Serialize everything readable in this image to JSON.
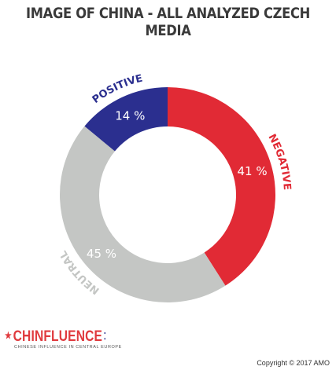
{
  "title": "IMAGE OF CHINA - ALL ANALYZED CZECH MEDIA",
  "chart_data": {
    "type": "pie",
    "variant": "donut",
    "title": "IMAGE OF CHINA - ALL ANALYZED CZECH MEDIA",
    "slices": [
      {
        "label": "NEGATIVE",
        "value": 41,
        "value_label": "41 %",
        "color": "#e12a35",
        "label_color": "#e12a35"
      },
      {
        "label": "NEUTRAL",
        "value": 45,
        "value_label": "45 %",
        "color": "#c4c6c4",
        "label_color": "#c4c6c4"
      },
      {
        "label": "POSITIVE",
        "value": 14,
        "value_label": "14 %",
        "color": "#2b2f8f",
        "label_color": "#2b2f8f"
      }
    ]
  },
  "logo": {
    "name": "CHINFLUENCE",
    "tagline": "CHINESE INFLUENCE IN CENTRAL EUROPE"
  },
  "copyright": "Copyright © 2017 AMO"
}
